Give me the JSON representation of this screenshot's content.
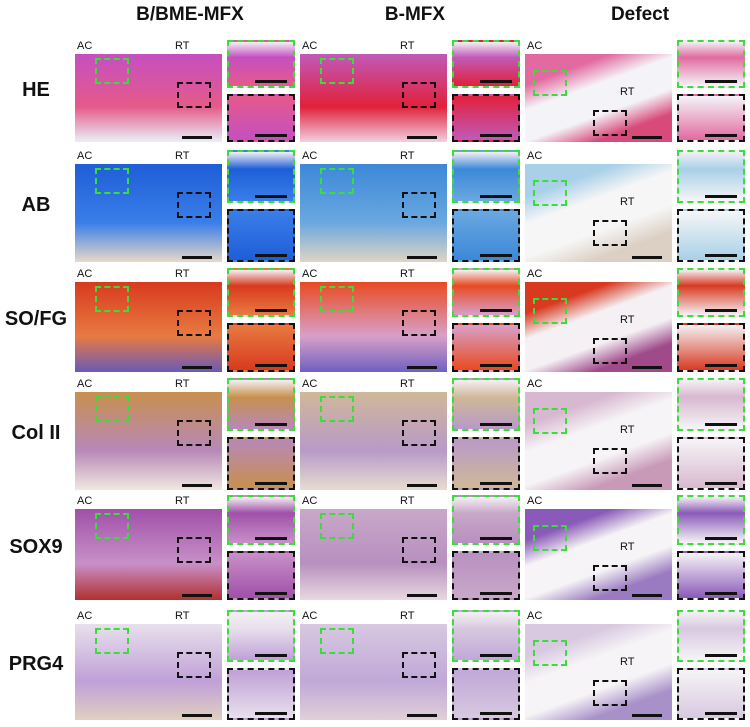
{
  "columns": [
    {
      "title": "B/BME-MFX"
    },
    {
      "title": "B-MFX"
    },
    {
      "title": "Defect"
    }
  ],
  "rows": [
    {
      "label": "HE",
      "colors": [
        [
          "#c44fc0",
          "#e65a8a",
          "#e8f0f8"
        ],
        [
          "#c05ab8",
          "#e2203a",
          "#f0d0e0"
        ],
        [
          "#e26aa0",
          "#f4f4f8",
          "#d84a7a"
        ]
      ]
    },
    {
      "label": "AB",
      "colors": [
        [
          "#1e5ed8",
          "#3a7ee8",
          "#e8d8c8"
        ],
        [
          "#3c88d8",
          "#6aa8e0",
          "#e0d4c4"
        ],
        [
          "#a8d0e8",
          "#f6f6f6",
          "#dcd0c4"
        ]
      ]
    },
    {
      "label": "SO/FG",
      "colors": [
        [
          "#d83a1e",
          "#e87a40",
          "#6a5ab8"
        ],
        [
          "#e84a20",
          "#d8a0c8",
          "#7060c0"
        ],
        [
          "#d83a20",
          "#f4f0f4",
          "#a04a8a"
        ]
      ]
    },
    {
      "label": "Col II",
      "colors": [
        [
          "#c8904e",
          "#b888b8",
          "#f0e8e0"
        ],
        [
          "#d0b898",
          "#b89ac8",
          "#e8dcd0"
        ],
        [
          "#d8b8d0",
          "#f6f4f6",
          "#c89ab8"
        ]
      ]
    },
    {
      "label": "SOX9",
      "colors": [
        [
          "#a050a8",
          "#c890c8",
          "#b03030"
        ],
        [
          "#c8a8c8",
          "#b890c0",
          "#e8d8e0"
        ],
        [
          "#8a5ab8",
          "#f6f4f6",
          "#9a7ac0"
        ]
      ]
    },
    {
      "label": "PRG4",
      "colors": [
        [
          "#e8e0ec",
          "#c0a0d8",
          "#e0d0c0"
        ],
        [
          "#d8c8e0",
          "#c0a8d8",
          "#e0d0d8"
        ],
        [
          "#d8c8e0",
          "#f6f4f6",
          "#a890c8"
        ]
      ]
    }
  ],
  "panel_labels": {
    "ac": "AC",
    "rt": "RT"
  }
}
